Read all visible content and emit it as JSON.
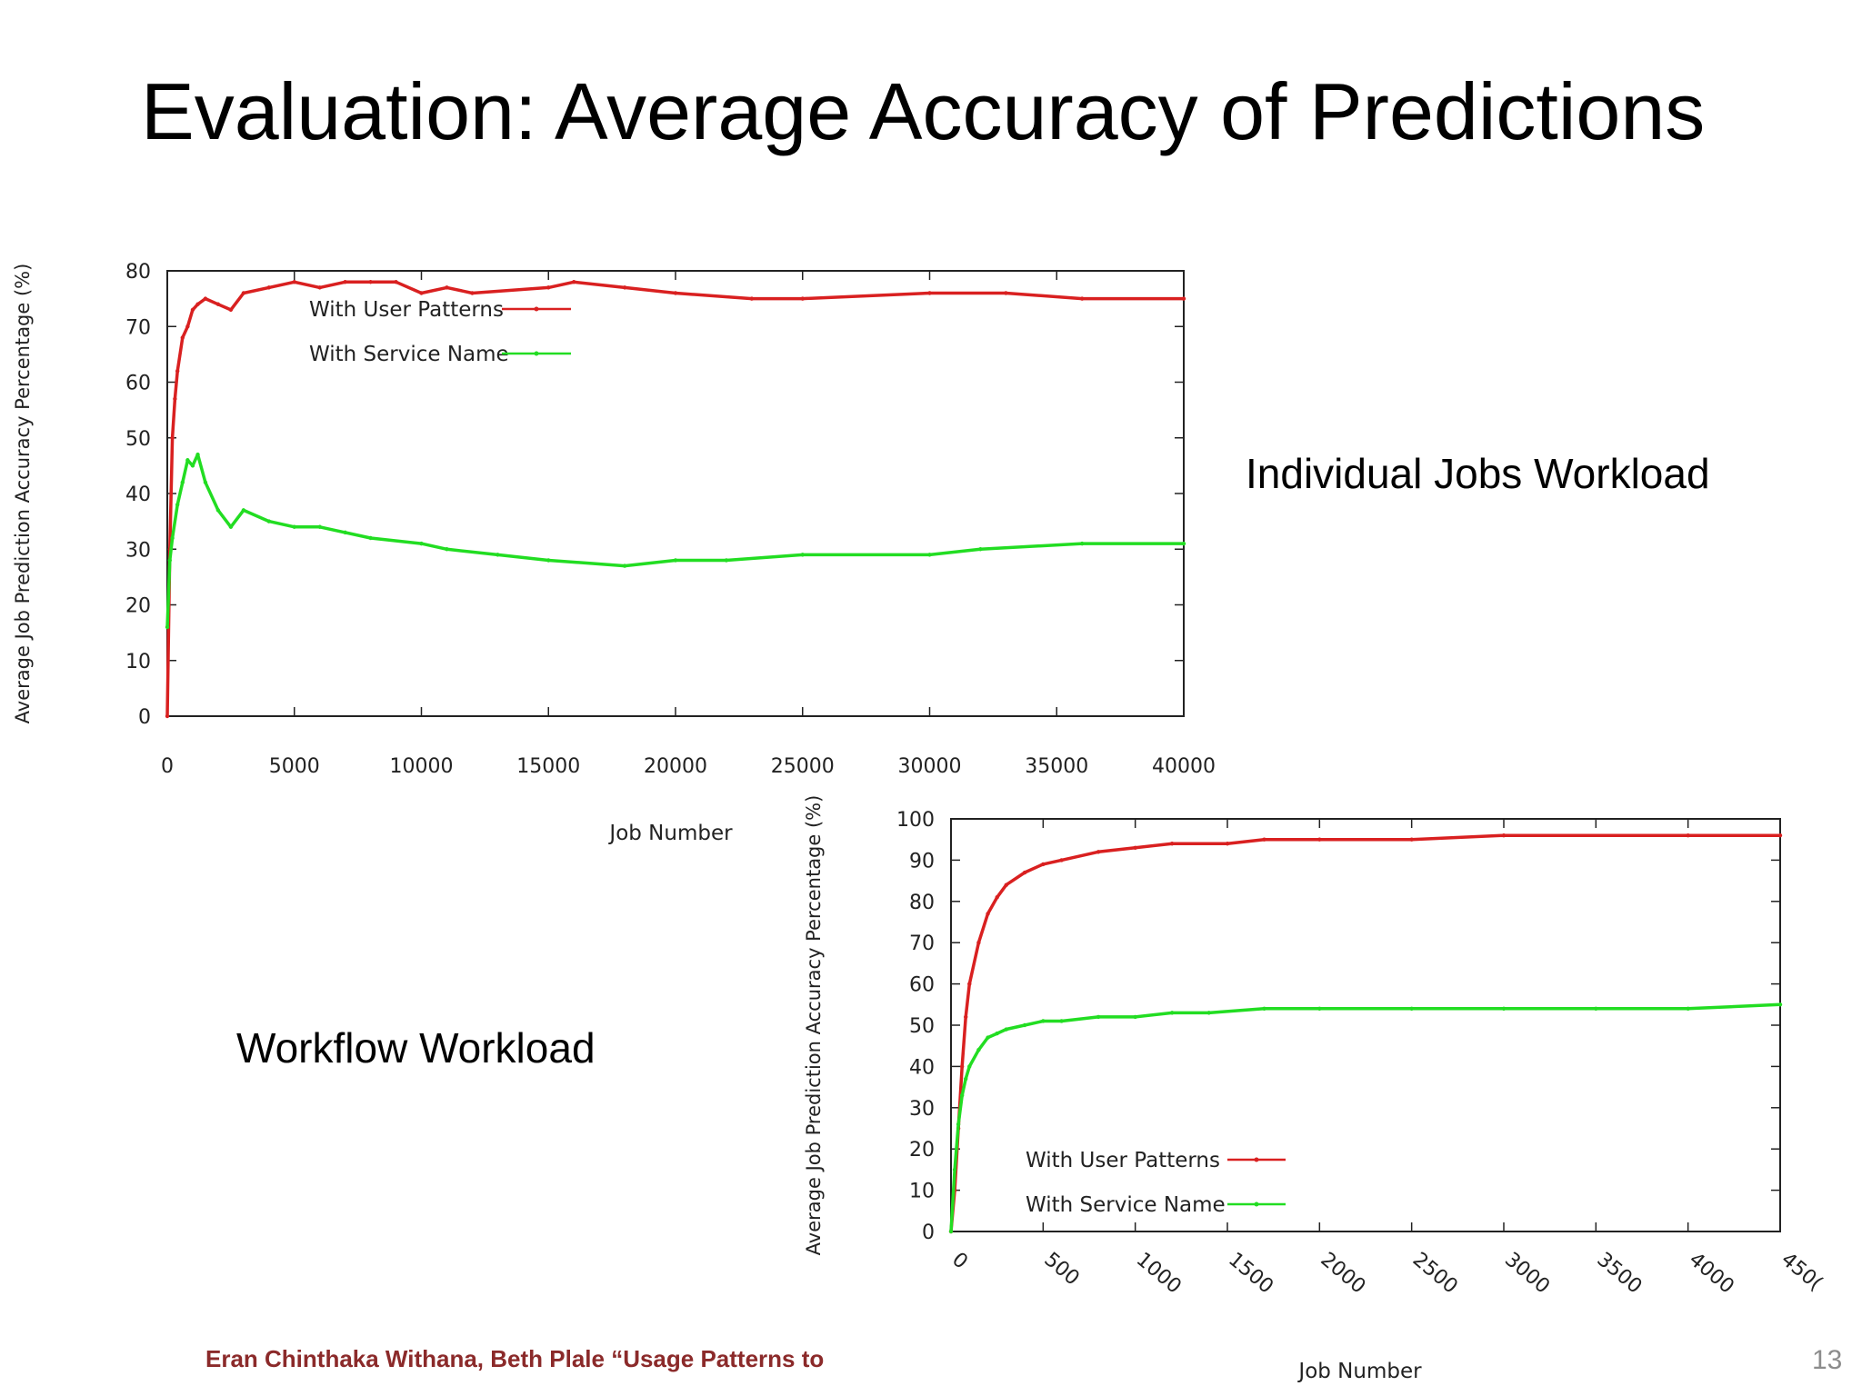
{
  "slide": {
    "title": "Evaluation: Average Accuracy of Predictions",
    "captions": {
      "individual": "Individual Jobs Workload",
      "workflow": "Workflow Workload"
    },
    "footer": "Eran Chinthaka Withana, Beth Plale “Usage Patterns to",
    "page_number": "13"
  },
  "colors": {
    "user_patterns": "#d92020",
    "service_name": "#22dd22",
    "axes": "#222222"
  },
  "chart_data": [
    {
      "type": "line",
      "title": "",
      "xlabel": "Job Number",
      "ylabel": "Average Job Prediction Accuracy Percentage (%)",
      "xlim": [
        0,
        40000
      ],
      "ylim": [
        0,
        80
      ],
      "x_ticks": [
        "0",
        "5000",
        "10000",
        "15000",
        "20000",
        "25000",
        "30000",
        "35000",
        "40000"
      ],
      "y_ticks": [
        "0",
        "10",
        "20",
        "30",
        "40",
        "50",
        "60",
        "70",
        "80"
      ],
      "legend_position": "top-left",
      "grid": false,
      "series": [
        {
          "name": "With User Patterns",
          "color": "#d92020",
          "x": [
            0,
            100,
            200,
            300,
            400,
            600,
            800,
            1000,
            1200,
            1500,
            2000,
            2500,
            3000,
            4000,
            5000,
            6000,
            7000,
            8000,
            9000,
            10000,
            11000,
            12000,
            15000,
            16000,
            18000,
            20000,
            23000,
            25000,
            30000,
            33000,
            36000,
            40000
          ],
          "y": [
            0,
            30,
            50,
            57,
            62,
            68,
            70,
            73,
            74,
            75,
            74,
            73,
            76,
            77,
            78,
            77,
            78,
            78,
            78,
            76,
            77,
            76,
            77,
            78,
            77,
            76,
            75,
            75,
            76,
            76,
            75,
            75
          ]
        },
        {
          "name": "With Service Name",
          "color": "#22dd22",
          "x": [
            0,
            100,
            200,
            400,
            600,
            800,
            1000,
            1200,
            1500,
            2000,
            2500,
            3000,
            4000,
            5000,
            6000,
            7000,
            8000,
            10000,
            11000,
            13000,
            15000,
            18000,
            20000,
            22000,
            25000,
            30000,
            32000,
            36000,
            40000
          ],
          "y": [
            16,
            28,
            32,
            38,
            42,
            46,
            45,
            47,
            42,
            37,
            34,
            37,
            35,
            34,
            34,
            33,
            32,
            31,
            30,
            29,
            28,
            27,
            28,
            28,
            29,
            29,
            30,
            31,
            31
          ]
        }
      ]
    },
    {
      "type": "line",
      "title": "",
      "xlabel": "Job Number",
      "ylabel": "Average Job Prediction Accuracy Percentage (%)",
      "xlim": [
        0,
        4500
      ],
      "ylim": [
        0,
        100
      ],
      "x_ticks": [
        "0",
        "500",
        "1000",
        "1500",
        "2000",
        "2500",
        "3000",
        "3500",
        "4000",
        "450("
      ],
      "y_ticks": [
        "0",
        "10",
        "20",
        "30",
        "40",
        "50",
        "60",
        "70",
        "80",
        "90",
        "100"
      ],
      "legend_position": "bottom-left",
      "grid": false,
      "series": [
        {
          "name": "With User Patterns",
          "color": "#d92020",
          "x": [
            0,
            20,
            40,
            60,
            80,
            100,
            150,
            200,
            250,
            300,
            400,
            500,
            600,
            800,
            1000,
            1200,
            1500,
            1700,
            2000,
            2500,
            3000,
            4000,
            4500
          ],
          "y": [
            0,
            10,
            25,
            40,
            52,
            60,
            70,
            77,
            81,
            84,
            87,
            89,
            90,
            92,
            93,
            94,
            94,
            95,
            95,
            95,
            96,
            96,
            96
          ]
        },
        {
          "name": "With Service Name",
          "color": "#22dd22",
          "x": [
            0,
            20,
            40,
            60,
            80,
            100,
            150,
            200,
            250,
            300,
            400,
            500,
            600,
            800,
            1000,
            1200,
            1400,
            1700,
            2000,
            2500,
            3000,
            3500,
            4000,
            4500
          ],
          "y": [
            0,
            15,
            26,
            33,
            37,
            40,
            44,
            47,
            48,
            49,
            50,
            51,
            51,
            52,
            52,
            53,
            53,
            54,
            54,
            54,
            54,
            54,
            54,
            55
          ]
        }
      ]
    }
  ]
}
